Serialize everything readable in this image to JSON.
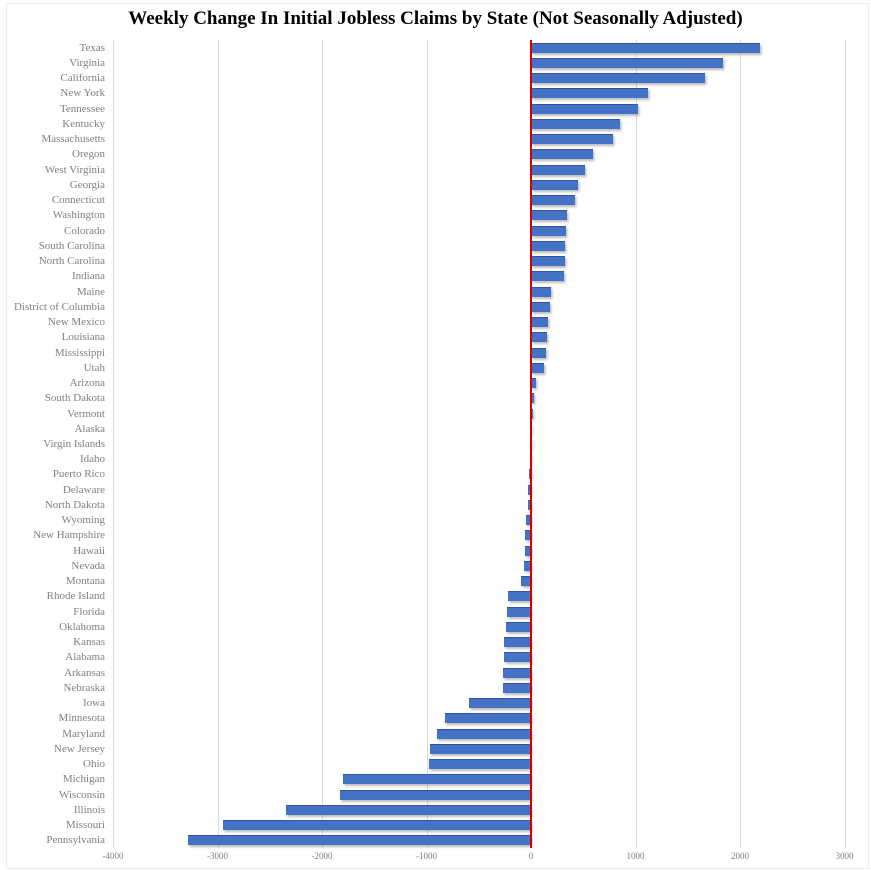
{
  "title": "Weekly Change In Initial Jobless Claims by State (Not Seasonally Adjusted)",
  "chart_data": {
    "type": "bar",
    "orientation": "horizontal",
    "title": "Weekly Change In Initial Jobless Claims by State (Not Seasonally Adjusted)",
    "categories": [
      "Texas",
      "Virginia",
      "California",
      "New York",
      "Tennessee",
      "Kentucky",
      "Massachusetts",
      "Oregon",
      "West Virginia",
      "Georgia",
      "Connecticut",
      "Washington",
      "Colorado",
      "South Carolina",
      "North Carolina",
      "Indiana",
      "Maine",
      "District of Columbia",
      "New Mexico",
      "Louisiana",
      "Mississippi",
      "Utah",
      "Arizona",
      "South Dakota",
      "Vermont",
      "Alaska",
      "Virgin Islands",
      "Idaho",
      "Puerto Rico",
      "Delaware",
      "North Dakota",
      "Wyoming",
      "New Hampshire",
      "Hawaii",
      "Nevada",
      "Montana",
      "Rhode Island",
      "Florida",
      "Oklahoma",
      "Kansas",
      "Alabama",
      "Arkansas",
      "Nebraska",
      "Iowa",
      "Minnesota",
      "Maryland",
      "New Jersey",
      "Ohio",
      "Michigan",
      "Wisconsin",
      "Illinois",
      "Missouri",
      "Pennsylvania"
    ],
    "values": [
      2190,
      1840,
      1665,
      1120,
      1020,
      855,
      780,
      590,
      520,
      445,
      420,
      340,
      335,
      330,
      325,
      320,
      195,
      180,
      165,
      150,
      140,
      125,
      50,
      30,
      20,
      10,
      5,
      -10,
      -15,
      -25,
      -30,
      -45,
      -55,
      -60,
      -70,
      -100,
      -220,
      -225,
      -235,
      -255,
      -260,
      -265,
      -270,
      -590,
      -820,
      -900,
      -965,
      -975,
      -1800,
      -1830,
      -2345,
      -2950,
      -3280
    ],
    "x_ticks": [
      -4000,
      -3000,
      -2000,
      -1000,
      0,
      1000,
      2000,
      3000
    ],
    "x_tick_labels": [
      "-4000",
      "-3000",
      "-2000",
      "-1000",
      "0",
      "1000",
      "2000",
      "3000"
    ],
    "xlim": [
      -4240,
      3225
    ],
    "ylabel": "",
    "xlabel": "",
    "grid": "vertical-gridlines",
    "legend": "none",
    "sorted": "descending",
    "colors": {
      "bar": "#4472C4",
      "zero_line": "#D40000",
      "gridline": "#D9D9D9",
      "labels": "#7F7F7F",
      "title": "#000000"
    }
  }
}
